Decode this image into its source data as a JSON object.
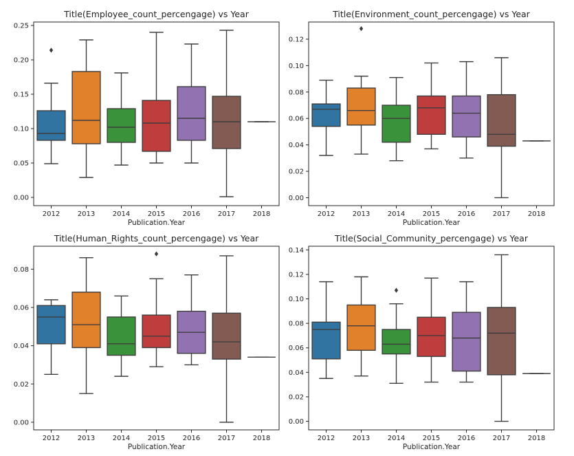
{
  "chart_data": [
    {
      "type": "box",
      "title": "Title(Employee_count_percengage) vs Year",
      "xlabel": "Publication.Year",
      "ylabel": "",
      "categories": [
        "2012",
        "2013",
        "2014",
        "2015",
        "2016",
        "2017",
        "2018"
      ],
      "ylim": [
        -0.012,
        0.255
      ],
      "yticks": [
        0.0,
        0.05,
        0.1,
        0.15,
        0.2,
        0.25
      ],
      "ytick_labels": [
        "0.00",
        "0.05",
        "0.10",
        "0.15",
        "0.20",
        "0.25"
      ],
      "boxes": [
        {
          "year": "2012",
          "min": 0.049,
          "q1": 0.083,
          "median": 0.093,
          "q3": 0.126,
          "max": 0.166,
          "outliers": [
            0.214
          ]
        },
        {
          "year": "2013",
          "min": 0.029,
          "q1": 0.078,
          "median": 0.112,
          "q3": 0.183,
          "max": 0.229,
          "outliers": []
        },
        {
          "year": "2014",
          "min": 0.047,
          "q1": 0.08,
          "median": 0.102,
          "q3": 0.129,
          "max": 0.181,
          "outliers": []
        },
        {
          "year": "2015",
          "min": 0.05,
          "q1": 0.067,
          "median": 0.108,
          "q3": 0.141,
          "max": 0.24,
          "outliers": []
        },
        {
          "year": "2016",
          "min": 0.05,
          "q1": 0.083,
          "median": 0.115,
          "q3": 0.161,
          "max": 0.223,
          "outliers": []
        },
        {
          "year": "2017",
          "min": 0.001,
          "q1": 0.071,
          "median": 0.11,
          "q3": 0.147,
          "max": 0.243,
          "outliers": []
        },
        {
          "year": "2018",
          "min": 0.11,
          "q1": 0.11,
          "median": 0.11,
          "q3": 0.11,
          "max": 0.11,
          "outliers": []
        }
      ]
    },
    {
      "type": "box",
      "title": "Title(Environment_count_percengage) vs Year",
      "xlabel": "Publication.Year",
      "ylabel": "",
      "categories": [
        "2012",
        "2013",
        "2014",
        "2015",
        "2016",
        "2017",
        "2018"
      ],
      "ylim": [
        -0.006,
        0.133
      ],
      "yticks": [
        0.0,
        0.02,
        0.04,
        0.06,
        0.08,
        0.1,
        0.12
      ],
      "ytick_labels": [
        "0.00",
        "0.02",
        "0.04",
        "0.06",
        "0.08",
        "0.10",
        "0.12"
      ],
      "boxes": [
        {
          "year": "2012",
          "min": 0.032,
          "q1": 0.054,
          "median": 0.067,
          "q3": 0.071,
          "max": 0.089,
          "outliers": []
        },
        {
          "year": "2013",
          "min": 0.033,
          "q1": 0.055,
          "median": 0.066,
          "q3": 0.083,
          "max": 0.092,
          "outliers": [
            0.128
          ]
        },
        {
          "year": "2014",
          "min": 0.028,
          "q1": 0.042,
          "median": 0.06,
          "q3": 0.07,
          "max": 0.091,
          "outliers": []
        },
        {
          "year": "2015",
          "min": 0.037,
          "q1": 0.048,
          "median": 0.068,
          "q3": 0.077,
          "max": 0.102,
          "outliers": []
        },
        {
          "year": "2016",
          "min": 0.03,
          "q1": 0.046,
          "median": 0.064,
          "q3": 0.077,
          "max": 0.103,
          "outliers": []
        },
        {
          "year": "2017",
          "min": 0.0,
          "q1": 0.039,
          "median": 0.048,
          "q3": 0.078,
          "max": 0.106,
          "outliers": []
        },
        {
          "year": "2018",
          "min": 0.043,
          "q1": 0.043,
          "median": 0.043,
          "q3": 0.043,
          "max": 0.043,
          "outliers": []
        }
      ]
    },
    {
      "type": "box",
      "title": "Title(Human_Rights_count_percengage) vs Year",
      "xlabel": "Publication.Year",
      "ylabel": "",
      "categories": [
        "2012",
        "2013",
        "2014",
        "2015",
        "2016",
        "2017",
        "2018"
      ],
      "ylim": [
        -0.004,
        0.092
      ],
      "yticks": [
        0.0,
        0.02,
        0.04,
        0.06,
        0.08
      ],
      "ytick_labels": [
        "0.00",
        "0.02",
        "0.04",
        "0.06",
        "0.08"
      ],
      "boxes": [
        {
          "year": "2012",
          "min": 0.025,
          "q1": 0.041,
          "median": 0.055,
          "q3": 0.061,
          "max": 0.064,
          "outliers": []
        },
        {
          "year": "2013",
          "min": 0.015,
          "q1": 0.039,
          "median": 0.051,
          "q3": 0.068,
          "max": 0.086,
          "outliers": []
        },
        {
          "year": "2014",
          "min": 0.024,
          "q1": 0.035,
          "median": 0.041,
          "q3": 0.055,
          "max": 0.066,
          "outliers": []
        },
        {
          "year": "2015",
          "min": 0.029,
          "q1": 0.039,
          "median": 0.045,
          "q3": 0.056,
          "max": 0.075,
          "outliers": [
            0.088
          ]
        },
        {
          "year": "2016",
          "min": 0.03,
          "q1": 0.036,
          "median": 0.047,
          "q3": 0.058,
          "max": 0.077,
          "outliers": []
        },
        {
          "year": "2017",
          "min": 0.0,
          "q1": 0.033,
          "median": 0.042,
          "q3": 0.057,
          "max": 0.087,
          "outliers": []
        },
        {
          "year": "2018",
          "min": 0.034,
          "q1": 0.034,
          "median": 0.034,
          "q3": 0.034,
          "max": 0.034,
          "outliers": []
        }
      ]
    },
    {
      "type": "box",
      "title": "Title(Social_Community_percengage) vs Year",
      "xlabel": "Publication.Year",
      "ylabel": "",
      "categories": [
        "2012",
        "2013",
        "2014",
        "2015",
        "2016",
        "2017",
        "2018"
      ],
      "ylim": [
        -0.007,
        0.143
      ],
      "yticks": [
        0.0,
        0.02,
        0.04,
        0.06,
        0.08,
        0.1,
        0.12,
        0.14
      ],
      "ytick_labels": [
        "0.00",
        "0.02",
        "0.04",
        "0.06",
        "0.08",
        "0.10",
        "0.12",
        "0.14"
      ],
      "boxes": [
        {
          "year": "2012",
          "min": 0.035,
          "q1": 0.051,
          "median": 0.075,
          "q3": 0.081,
          "max": 0.114,
          "outliers": []
        },
        {
          "year": "2013",
          "min": 0.037,
          "q1": 0.058,
          "median": 0.078,
          "q3": 0.095,
          "max": 0.118,
          "outliers": []
        },
        {
          "year": "2014",
          "min": 0.031,
          "q1": 0.055,
          "median": 0.063,
          "q3": 0.075,
          "max": 0.096,
          "outliers": [
            0.107
          ]
        },
        {
          "year": "2015",
          "min": 0.032,
          "q1": 0.053,
          "median": 0.07,
          "q3": 0.085,
          "max": 0.117,
          "outliers": []
        },
        {
          "year": "2016",
          "min": 0.032,
          "q1": 0.041,
          "median": 0.068,
          "q3": 0.089,
          "max": 0.114,
          "outliers": []
        },
        {
          "year": "2017",
          "min": 0.0,
          "q1": 0.038,
          "median": 0.072,
          "q3": 0.093,
          "max": 0.136,
          "outliers": []
        },
        {
          "year": "2018",
          "min": 0.039,
          "q1": 0.039,
          "median": 0.039,
          "q3": 0.039,
          "max": 0.039,
          "outliers": []
        }
      ]
    }
  ],
  "colors": {
    "2012": "#3274a1",
    "2013": "#e1812c",
    "2014": "#3a923a",
    "2015": "#c03d3e",
    "2016": "#9372b2",
    "2017": "#845b53",
    "2018": "#d684bd",
    "line": "#3d3d3d",
    "axis": "#222222"
  }
}
